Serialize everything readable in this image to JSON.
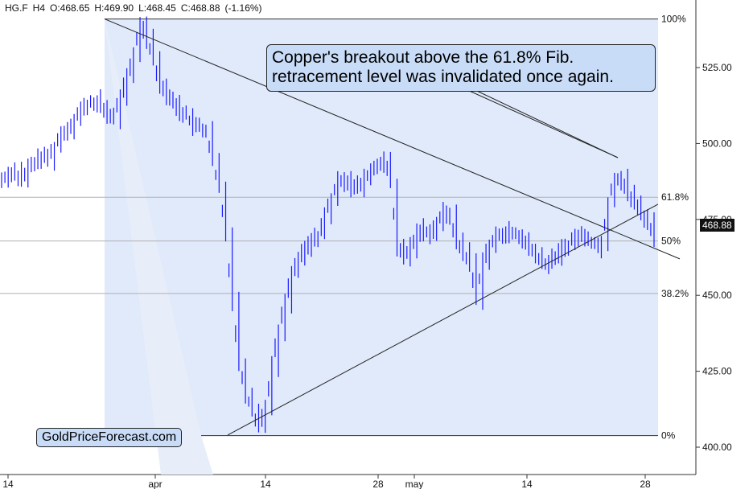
{
  "header": {
    "symbol": "HG.F",
    "timeframe": "H4",
    "open": "O:468.65",
    "high": "H:469.90",
    "low": "L:468.45",
    "close": "C:468.88",
    "change": "(-1.16%)"
  },
  "annotation": {
    "line1": "Copper's breakout above the 61.8% Fib.",
    "line2": "retracement level was invalidated once again."
  },
  "watermark": "GoldPriceForecast.com",
  "current_price": "468.88",
  "colors": {
    "candles": "#1a1aff",
    "fib_fill": "#dbe6fa",
    "callout_fill": "#c9dcf7",
    "gridline": "#b0b0b0"
  },
  "chart_data": {
    "type": "line",
    "title": "",
    "xlabel": "",
    "ylabel": "",
    "ylim": [
      397,
      545
    ],
    "y_ticks": [
      "400.00",
      "425.00",
      "450.00",
      "475.00",
      "500.00",
      "525.00"
    ],
    "x_ticks": [
      "14",
      "apr",
      "14",
      "28",
      "may",
      "14",
      "28"
    ],
    "fib_levels": [
      {
        "label": "100%",
        "value": 541.0
      },
      {
        "label": "61.8%",
        "value": 482.3
      },
      {
        "label": "50%",
        "value": 467.9
      },
      {
        "label": "38.2%",
        "value": 450.6
      },
      {
        "label": "0%",
        "value": 403.8
      }
    ],
    "series": [
      {
        "values": [
          488,
          490,
          491,
          487,
          492,
          494,
          496,
          495,
          499,
          503,
          505,
          508,
          511,
          513,
          514,
          512,
          510,
          508,
          516,
          521,
          529,
          540,
          535,
          528,
          520,
          516,
          513,
          511,
          509,
          506,
          505,
          504,
          494,
          485,
          470,
          448,
          428,
          418,
          412,
          407,
          413,
          427,
          438,
          448,
          457,
          462,
          465,
          468,
          470,
          476,
          482,
          487,
          489,
          486,
          485,
          488,
          491,
          493,
          495,
          487,
          466,
          462,
          466,
          470,
          472,
          470,
          474,
          477,
          476,
          468,
          464,
          461,
          449,
          462,
          466,
          469,
          471,
          470,
          470,
          468,
          466,
          463,
          460,
          461,
          463,
          465,
          467,
          469,
          470,
          468,
          467,
          466,
          481,
          489,
          488,
          484,
          480,
          477,
          474,
          469
        ]
      }
    ]
  }
}
